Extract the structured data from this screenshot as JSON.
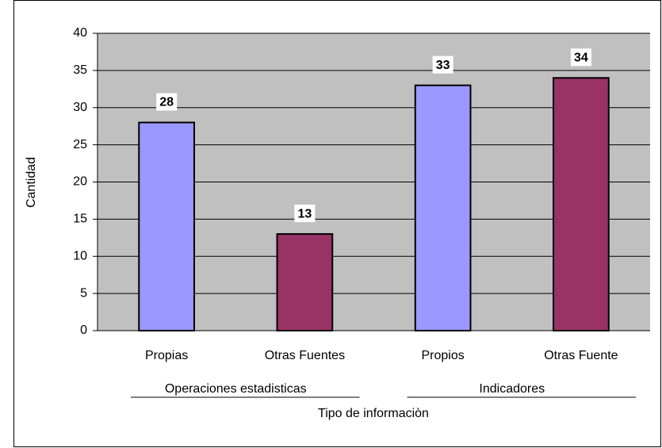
{
  "chart_data": {
    "type": "bar",
    "categories": [
      "Propias",
      "Otras Fuentes",
      "Propios",
      "Otras Fuente"
    ],
    "values": [
      28,
      13,
      33,
      34
    ],
    "colors": [
      "#9999ff",
      "#993366",
      "#9999ff",
      "#993366"
    ],
    "groups": [
      "Operaciones estadisticas",
      "Indicadores"
    ],
    "xlabel": "Tipo de informaciòn",
    "ylabel": "Cantidad",
    "ylim": [
      0,
      40
    ],
    "yticks": [
      0,
      5,
      10,
      15,
      20,
      25,
      30,
      35,
      40
    ],
    "grid": true
  }
}
